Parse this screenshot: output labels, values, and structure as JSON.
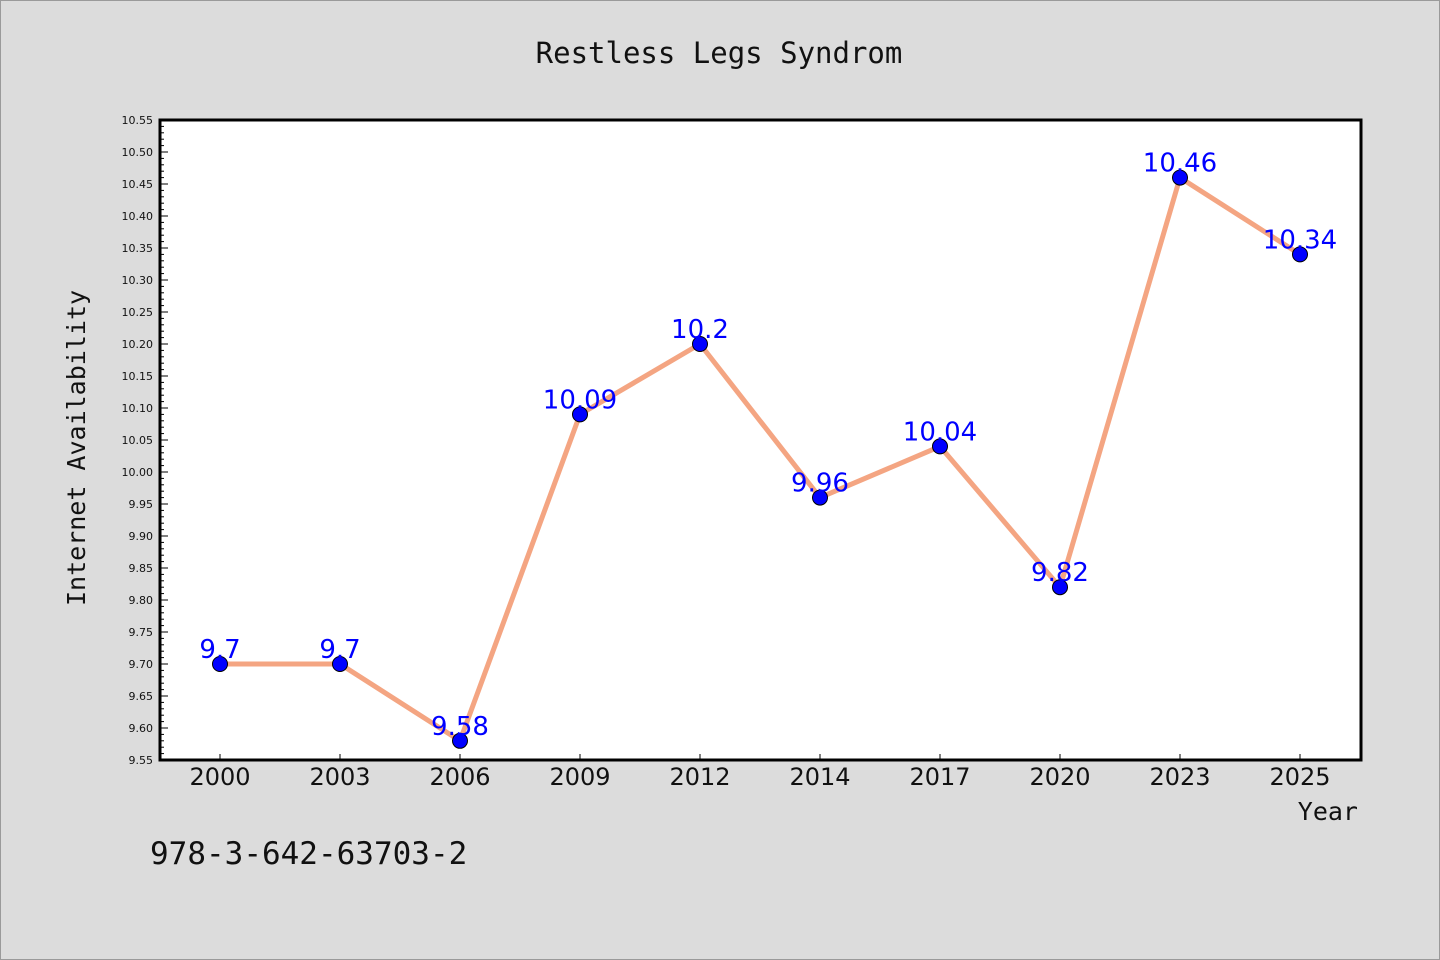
{
  "caption": "978-3-642-63703-2",
  "colors": {
    "background": "#dcdcdc",
    "plot_background": "#ffffff",
    "line": "#f4a582",
    "marker": "#0000ff",
    "data_label": "#0000ff"
  },
  "chart_data": {
    "type": "line",
    "title": "Restless Legs Syndrom",
    "xlabel": "Year",
    "ylabel": "Internet Availability",
    "categories": [
      "2000",
      "2003",
      "2006",
      "2009",
      "2012",
      "2014",
      "2017",
      "2020",
      "2023",
      "2025"
    ],
    "series": [
      {
        "values": [
          9.7,
          9.7,
          9.58,
          10.09,
          10.2,
          9.96,
          10.04,
          9.82,
          10.46,
          10.34
        ]
      }
    ],
    "data_labels": [
      "9.7",
      "9.7",
      "9.58",
      "10.09",
      "10.2",
      "9.96",
      "10.04",
      "9.82",
      "10.46",
      "10.34"
    ],
    "ylim": [
      9.55,
      10.55
    ],
    "yticks": [
      "9.55",
      "9.60",
      "9.65",
      "9.70",
      "9.75",
      "9.80",
      "9.85",
      "9.90",
      "9.95",
      "10.00",
      "10.05",
      "10.10",
      "10.15",
      "10.20",
      "10.25",
      "10.30",
      "10.35",
      "10.40",
      "10.45",
      "10.50",
      "10.55"
    ],
    "grid": false,
    "legend": "none",
    "markers": "circle"
  }
}
